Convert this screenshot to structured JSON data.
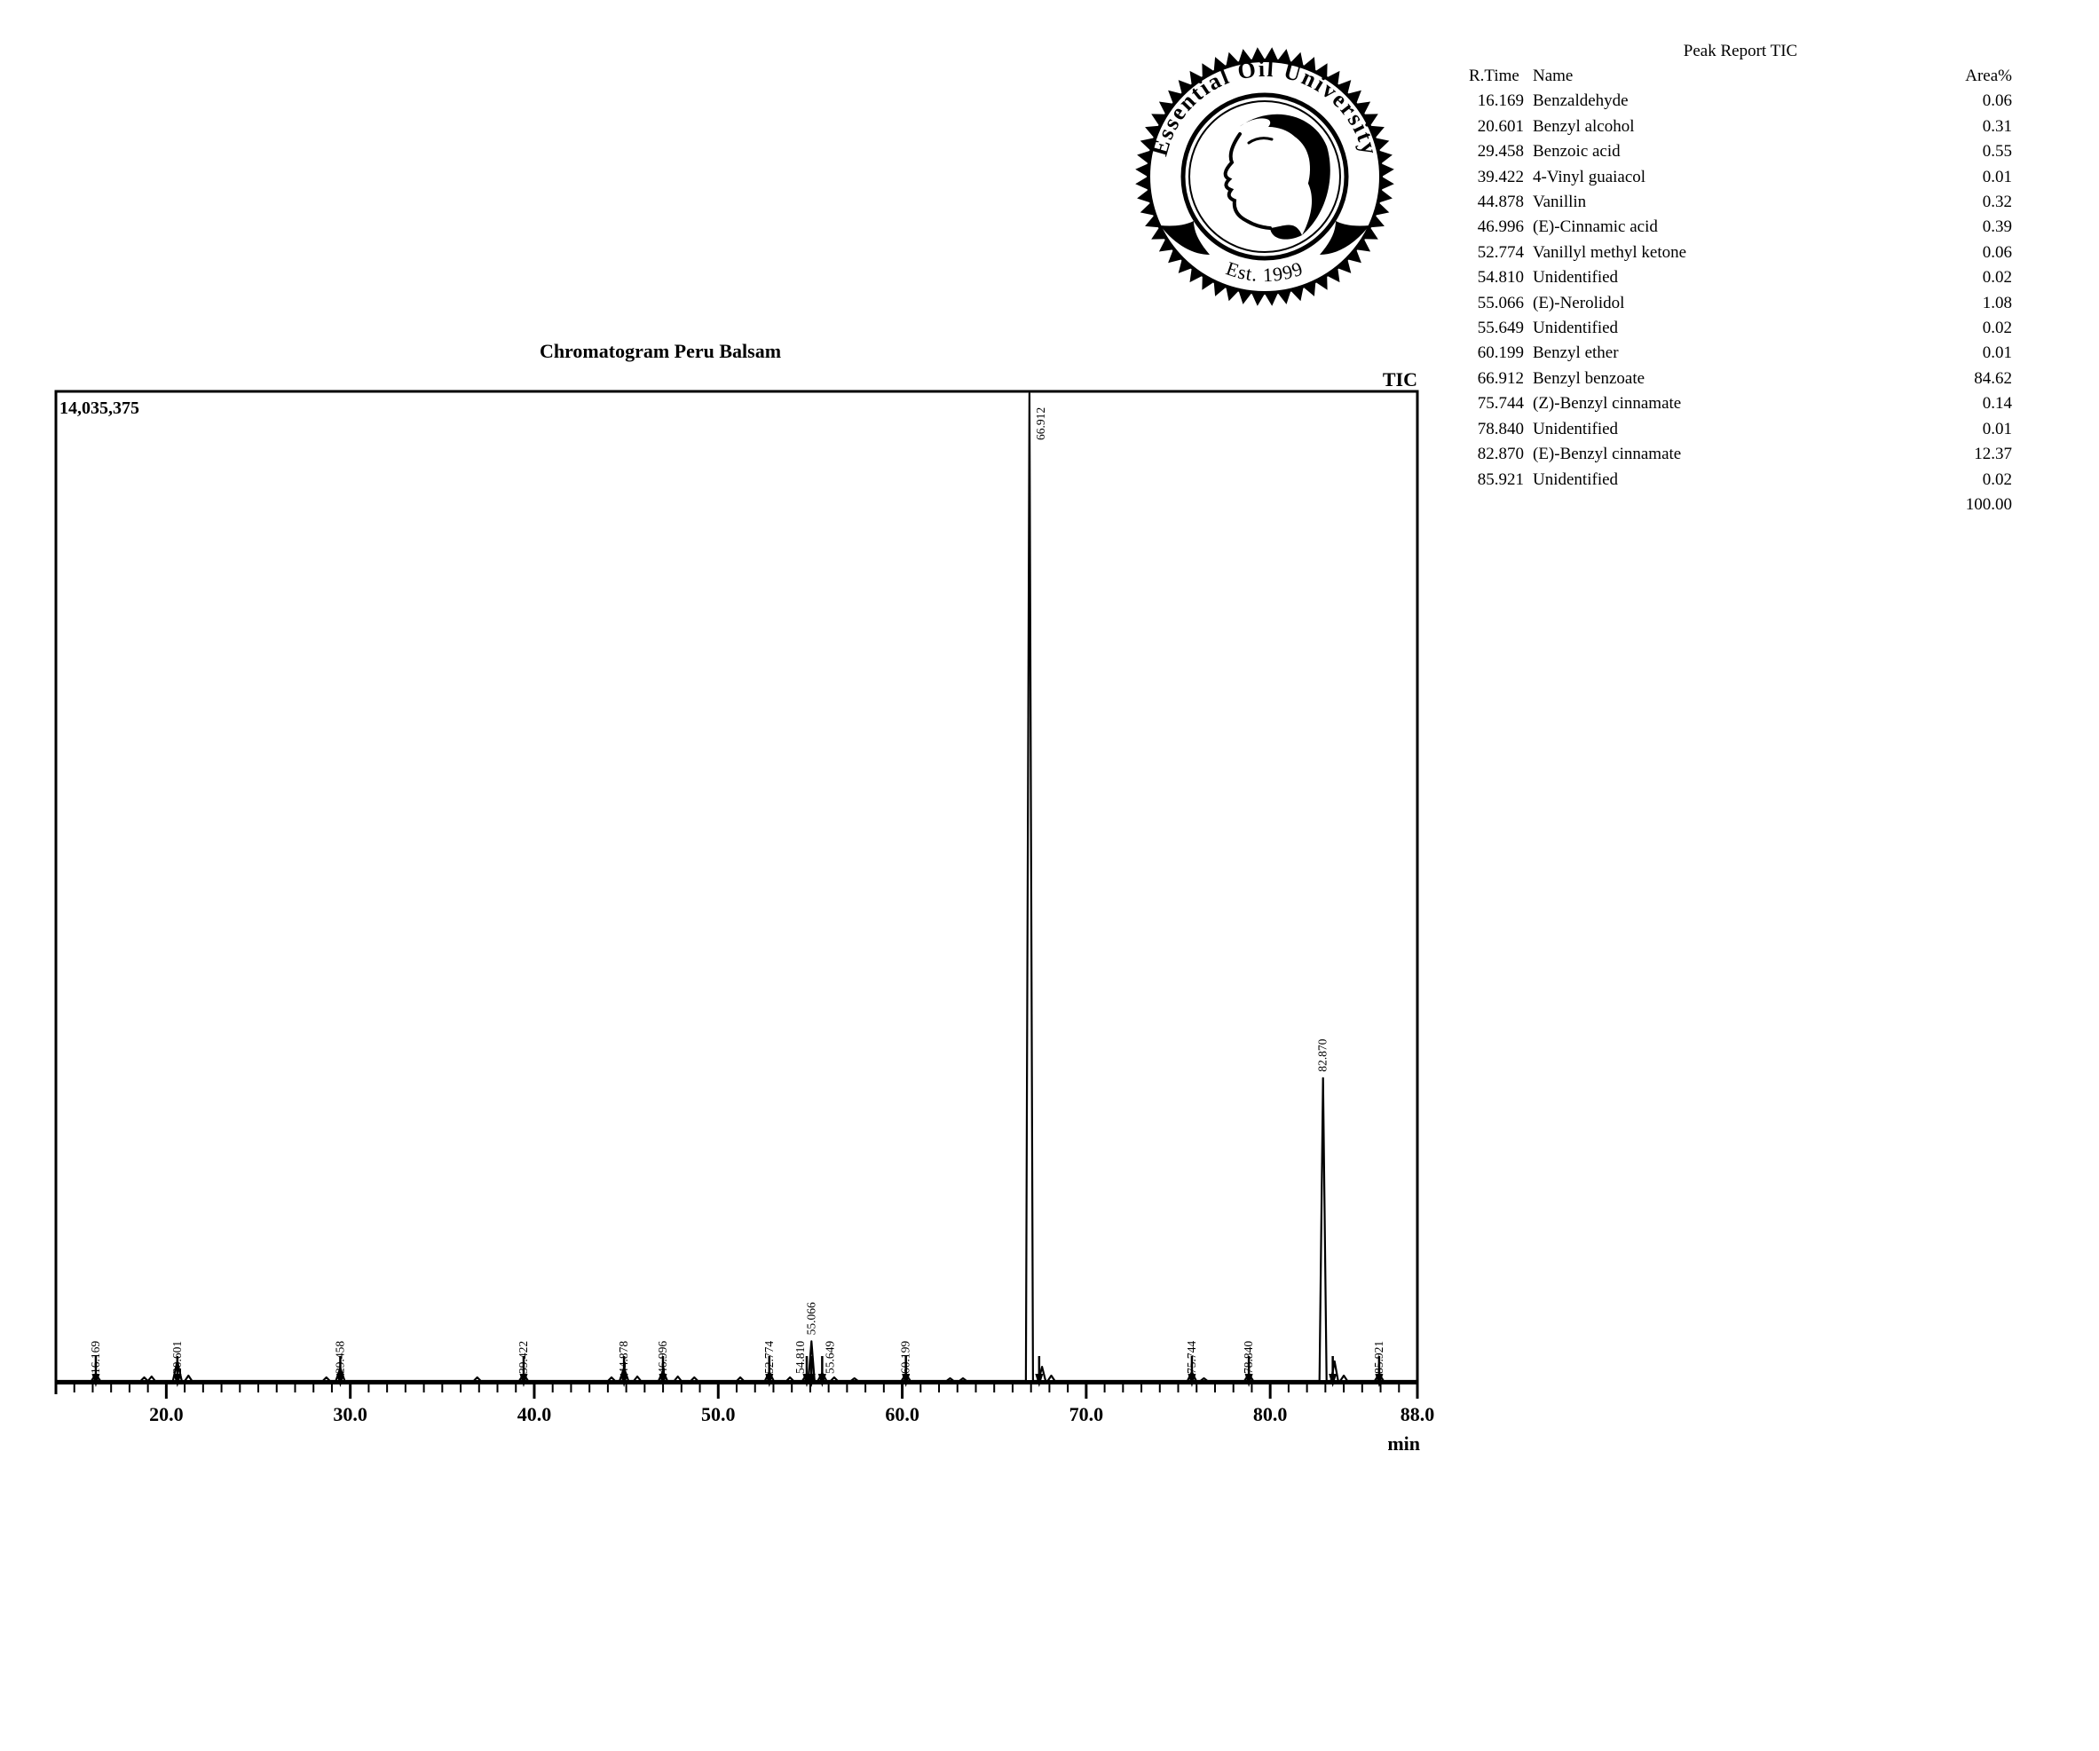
{
  "logo": {
    "ring_text": "Essential Oil University",
    "est_text": "Est. 1999"
  },
  "report": {
    "title": "Peak Report TIC",
    "columns": {
      "rtime": "R.Time",
      "name": "Name",
      "area": "Area%"
    },
    "rows": [
      {
        "rtime": "16.169",
        "name": "Benzaldehyde",
        "area": "0.06"
      },
      {
        "rtime": "20.601",
        "name": "Benzyl alcohol",
        "area": "0.31"
      },
      {
        "rtime": "29.458",
        "name": "Benzoic acid",
        "area": "0.55"
      },
      {
        "rtime": "39.422",
        "name": "4-Vinyl guaiacol",
        "area": "0.01"
      },
      {
        "rtime": "44.878",
        "name": "Vanillin",
        "area": "0.32"
      },
      {
        "rtime": "46.996",
        "name": "(E)-Cinnamic acid",
        "area": "0.39"
      },
      {
        "rtime": "52.774",
        "name": "Vanillyl methyl ketone",
        "area": "0.06"
      },
      {
        "rtime": "54.810",
        "name": "Unidentified",
        "area": "0.02"
      },
      {
        "rtime": "55.066",
        "name": "(E)-Nerolidol",
        "area": "1.08"
      },
      {
        "rtime": "55.649",
        "name": "Unidentified",
        "area": "0.02"
      },
      {
        "rtime": "60.199",
        "name": "Benzyl ether",
        "area": "0.01"
      },
      {
        "rtime": "66.912",
        "name": "Benzyl benzoate",
        "area": "84.62"
      },
      {
        "rtime": "75.744",
        "name": "(Z)-Benzyl cinnamate",
        "area": "0.14"
      },
      {
        "rtime": "78.840",
        "name": "Unidentified",
        "area": "0.01"
      },
      {
        "rtime": "82.870",
        "name": "(E)-Benzyl cinnamate",
        "area": "12.37"
      },
      {
        "rtime": "85.921",
        "name": "Unidentified",
        "area": "0.02"
      },
      {
        "rtime": "",
        "name": "",
        "area": "100.00"
      }
    ]
  },
  "chart_data": {
    "type": "line",
    "title": "Chromatogram Peru Balsam",
    "signal_label": "TIC",
    "intensity_full_scale": "14,035,375",
    "xlabel": "min",
    "x_range": [
      14.0,
      88.0
    ],
    "x_minor_tick_interval": 1,
    "x_major_ticks": [
      {
        "t": 20,
        "label": "20.0"
      },
      {
        "t": 30,
        "label": "30.0"
      },
      {
        "t": 40,
        "label": "40.0"
      },
      {
        "t": 50,
        "label": "50.0"
      },
      {
        "t": 60,
        "label": "60.0"
      },
      {
        "t": 70,
        "label": "70.0"
      },
      {
        "t": 80,
        "label": "80.0"
      },
      {
        "t": 88,
        "label": "88.0"
      }
    ],
    "grid": false,
    "peaks": [
      {
        "t": 16.169,
        "label": "16.169",
        "area_pct": 0.06,
        "h_frac": 0.007
      },
      {
        "t": 20.601,
        "label": "20.601",
        "area_pct": 0.31,
        "h_frac": 0.02
      },
      {
        "t": 29.458,
        "label": "29.458",
        "area_pct": 0.55,
        "h_frac": 0.013
      },
      {
        "t": 39.422,
        "label": "39.422",
        "area_pct": 0.01,
        "h_frac": 0.007
      },
      {
        "t": 44.878,
        "label": "44.878",
        "area_pct": 0.32,
        "h_frac": 0.013
      },
      {
        "t": 46.996,
        "label": "46.996",
        "area_pct": 0.39,
        "h_frac": 0.01
      },
      {
        "t": 52.774,
        "label": "52.774",
        "area_pct": 0.06,
        "h_frac": 0.009
      },
      {
        "t": 54.81,
        "label": "54.810",
        "area_pct": 0.02,
        "h_frac": 0.007,
        "label_dx": -7
      },
      {
        "t": 55.066,
        "label": "55.066",
        "area_pct": 1.08,
        "h_frac": 0.04,
        "label_style": "above-apex"
      },
      {
        "t": 55.649,
        "label": "55.649",
        "area_pct": 0.02,
        "h_frac": 0.008,
        "label_dx": 9
      },
      {
        "t": 60.199,
        "label": "60.199",
        "area_pct": 0.01,
        "h_frac": 0.007
      },
      {
        "t": 66.912,
        "label": "66.912",
        "area_pct": 84.62,
        "h_frac": 0.998,
        "label_style": "top-right"
      },
      {
        "t": 75.744,
        "label": "75.744",
        "area_pct": 0.14,
        "h_frac": 0.009
      },
      {
        "t": 78.84,
        "label": "78.840",
        "area_pct": 0.01,
        "h_frac": 0.007
      },
      {
        "t": 82.87,
        "label": "82.870",
        "area_pct": 12.37,
        "h_frac": 0.306,
        "label_style": "above-apex"
      },
      {
        "t": 85.921,
        "label": "85.921",
        "area_pct": 0.02,
        "h_frac": 0.007
      }
    ],
    "minor_bumps": [
      {
        "t": 18.8,
        "h_frac": 0.0036
      },
      {
        "t": 19.2,
        "h_frac": 0.0045
      },
      {
        "t": 21.2,
        "h_frac": 0.0054
      },
      {
        "t": 28.7,
        "h_frac": 0.0036
      },
      {
        "t": 36.9,
        "h_frac": 0.0036
      },
      {
        "t": 44.2,
        "h_frac": 0.0036
      },
      {
        "t": 45.6,
        "h_frac": 0.0045
      },
      {
        "t": 47.8,
        "h_frac": 0.0045
      },
      {
        "t": 48.7,
        "h_frac": 0.0036
      },
      {
        "t": 51.2,
        "h_frac": 0.0036
      },
      {
        "t": 53.9,
        "h_frac": 0.0036
      },
      {
        "t": 56.3,
        "h_frac": 0.0036
      },
      {
        "t": 57.4,
        "h_frac": 0.0027
      },
      {
        "t": 62.6,
        "h_frac": 0.0027
      },
      {
        "t": 63.3,
        "h_frac": 0.0027
      },
      {
        "t": 67.6,
        "h_frac": 0.0143
      },
      {
        "t": 68.1,
        "h_frac": 0.0054
      },
      {
        "t": 76.4,
        "h_frac": 0.0027
      },
      {
        "t": 83.5,
        "h_frac": 0.0197
      },
      {
        "t": 84.0,
        "h_frac": 0.0054
      }
    ]
  }
}
